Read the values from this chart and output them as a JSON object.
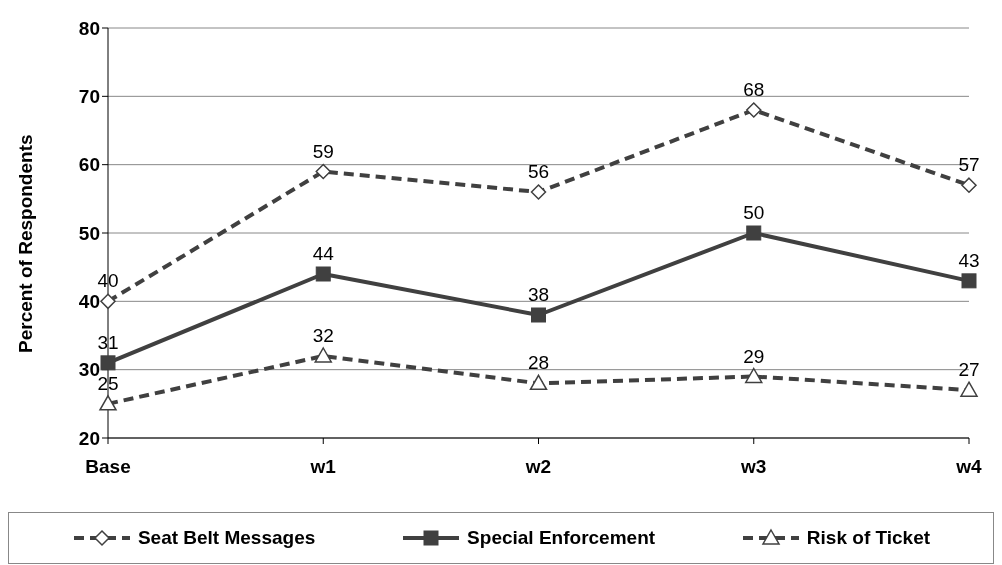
{
  "chart_data": {
    "type": "line",
    "ylabel": "Percent of Respondents",
    "categories": [
      "Base",
      "w1",
      "w2",
      "w3",
      "w4"
    ],
    "series": [
      {
        "name": "Seat Belt Messages",
        "color": "#404040",
        "values": [
          40,
          59,
          56,
          68,
          57
        ],
        "marker": "diamond",
        "line_style": "dashed"
      },
      {
        "name": "Special Enforcement",
        "color": "#404040",
        "values": [
          31,
          44,
          38,
          50,
          43
        ],
        "marker": "square",
        "line_style": "solid"
      },
      {
        "name": "Risk of Ticket",
        "color": "#404040",
        "values": [
          25,
          32,
          28,
          29,
          27
        ],
        "marker": "triangle",
        "line_style": "dashed"
      }
    ],
    "ylim": [
      20,
      80
    ],
    "yticks": [
      20,
      30,
      40,
      50,
      60,
      70,
      80
    ],
    "grid": "y",
    "legend": "bottom",
    "data_labels": true
  }
}
